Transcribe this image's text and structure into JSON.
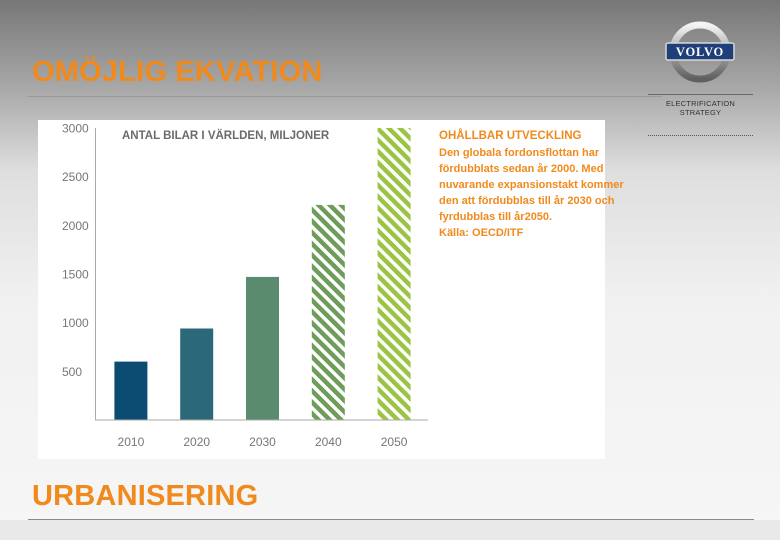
{
  "slide": {
    "title": "OMÖJLIG EKVATION",
    "footer": "URBANISERING",
    "subtitle_line1": "ELECTRIFICATION",
    "subtitle_line2": "STRATEGY",
    "logo_text": "VOLVO",
    "accent_color": "#f08a1c"
  },
  "annotation": {
    "heading": "OHÅLLBAR UTVECKLING",
    "lines": [
      "Den globala fordonsflottan har",
      "fördubblats sedan år 2000. Med",
      "nuvarande expansionstakt kommer",
      "den att fördubblas till år 2030 och",
      "fyrdubblas till år2050.",
      "Källa: OECD/ITF"
    ]
  },
  "chart_data": {
    "type": "bar",
    "title": "ANTAL BILAR I VÄRLDEN, MILJONER",
    "categories": [
      "2010",
      "2020",
      "2030",
      "2040",
      "2050"
    ],
    "values": [
      600,
      940,
      1470,
      2210,
      3000
    ],
    "projected": [
      false,
      false,
      false,
      true,
      true
    ],
    "colors": [
      "#0d4c72",
      "#2a687a",
      "#5b8b6e",
      "#6e9c5a",
      "#9bc444"
    ],
    "ylim": [
      0,
      3000
    ],
    "yticks": [
      500,
      1000,
      1500,
      2000,
      2500,
      3000
    ],
    "yticklabels": [
      "500",
      "1000",
      "1500",
      "2000",
      "2500",
      "3000"
    ],
    "xlabel": "",
    "ylabel": ""
  }
}
